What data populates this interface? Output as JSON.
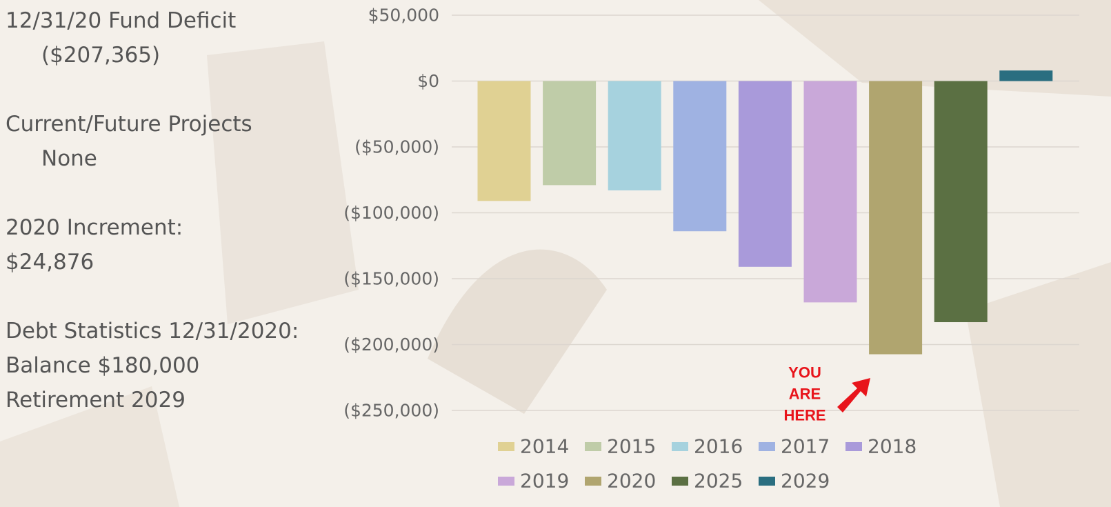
{
  "sidebar": [
    {
      "heading": "12/31/20 Fund Deficit",
      "lines": [
        "($207,365)"
      ]
    },
    {
      "heading": "Current/Future Projects",
      "lines": [
        "None"
      ]
    },
    {
      "heading": "2020 Increment:",
      "lines": [
        "$24,876"
      ]
    },
    {
      "heading": "Debt Statistics 12/31/2020:",
      "lines": [
        "Balance $180,000",
        "Retirement  2029"
      ]
    }
  ],
  "chart_data": {
    "type": "bar",
    "categories": [
      null
    ],
    "series": [
      {
        "name": "2014",
        "color": "#e0d193",
        "values": [
          -91000
        ]
      },
      {
        "name": "2015",
        "color": "#bfcca8",
        "values": [
          -79000
        ]
      },
      {
        "name": "2016",
        "color": "#a6d2de",
        "values": [
          -83000
        ]
      },
      {
        "name": "2017",
        "color": "#9fb2e2",
        "values": [
          -114000
        ]
      },
      {
        "name": "2018",
        "color": "#a99ada",
        "values": [
          -141000
        ]
      },
      {
        "name": "2019",
        "color": "#c9a8d9",
        "values": [
          -168000
        ]
      },
      {
        "name": "2020",
        "color": "#b0a56f",
        "values": [
          -207365
        ]
      },
      {
        "name": "2025",
        "color": "#5b7043",
        "values": [
          -183000
        ]
      },
      {
        "name": "2029",
        "color": "#2a6e80",
        "values": [
          8000
        ]
      }
    ],
    "ylim": [
      -250000,
      50000
    ],
    "yticks": [
      {
        "value": -250000,
        "label": "($250,000)"
      },
      {
        "value": -200000,
        "label": "($200,000)"
      },
      {
        "value": -150000,
        "label": "($150,000)"
      },
      {
        "value": -100000,
        "label": "($100,000)"
      },
      {
        "value": -50000,
        "label": "($50,000)"
      },
      {
        "value": 0,
        "label": "$0"
      },
      {
        "value": 50000,
        "label": "$50,000"
      }
    ],
    "grid": true,
    "legend": "bottom",
    "annotation": [
      "YOU",
      "ARE",
      "HERE"
    ]
  }
}
